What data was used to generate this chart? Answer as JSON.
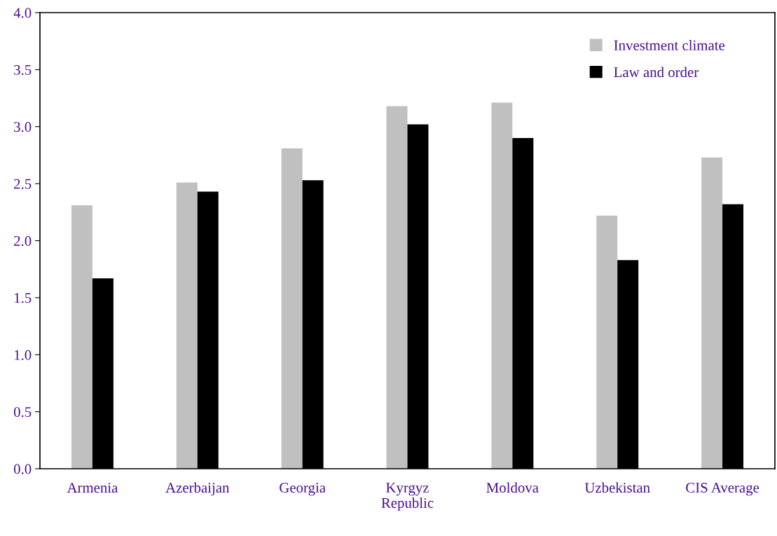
{
  "chart_data": {
    "type": "bar",
    "categories": [
      "Armenia",
      "Azerbaijan",
      "Georgia",
      "Kyrgyz\nRepublic",
      "Moldova",
      "Uzbekistan",
      "CIS Average"
    ],
    "series": [
      {
        "name": "Investment climate",
        "color": "#c0c0c0",
        "values": [
          2.31,
          2.51,
          2.81,
          3.18,
          3.21,
          2.22,
          2.73
        ]
      },
      {
        "name": "Law and order",
        "color": "#000000",
        "values": [
          1.67,
          2.43,
          2.53,
          3.02,
          2.9,
          1.83,
          2.32
        ]
      }
    ],
    "ylim": [
      0,
      4.0
    ],
    "yticks": [
      {
        "value": 0,
        "label": "0.0"
      },
      {
        "value": 0.5,
        "label": "0.5"
      },
      {
        "value": 1,
        "label": "1.0"
      },
      {
        "value": 1.5,
        "label": "1.5"
      },
      {
        "value": 2,
        "label": "2.0"
      },
      {
        "value": 2.5,
        "label": "2.5"
      },
      {
        "value": 3,
        "label": "3.0"
      },
      {
        "value": 3.5,
        "label": "3.5"
      },
      {
        "value": 4,
        "label": "4.0"
      }
    ],
    "grid": false,
    "legend": "top right"
  }
}
